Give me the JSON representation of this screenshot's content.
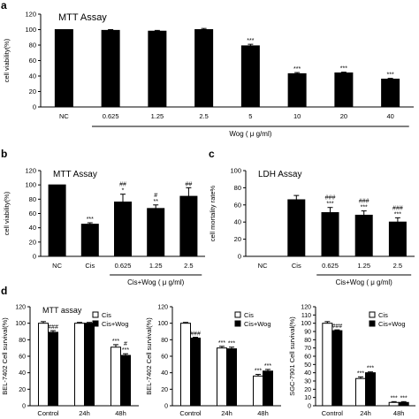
{
  "colors": {
    "bar_black": "#000000",
    "bar_white": "#ffffff",
    "axis": "#000000"
  },
  "chart_data": [
    {
      "panel": "a",
      "type": "bar",
      "title": "MTT Assay",
      "ylabel": "cell viability(%)",
      "xlabel": "Wog ( μ g/ml)",
      "ylim": [
        0,
        120
      ],
      "yticks": [
        "0",
        "20",
        "40",
        "60",
        "80",
        "100",
        "120"
      ],
      "categories": [
        "NC",
        "0.625",
        "1.25",
        "2.5",
        "5",
        "10",
        "20",
        "40"
      ],
      "values": [
        100,
        99,
        98,
        100,
        79,
        43,
        44,
        36
      ],
      "errors": [
        0,
        1,
        1,
        1.5,
        2,
        1.5,
        1,
        1
      ],
      "annotations": [
        "",
        "",
        "",
        "",
        "***",
        "***",
        "***",
        "***"
      ],
      "group_bracket": {
        "from": 1,
        "to": 7
      }
    },
    {
      "panel": "b",
      "type": "bar",
      "title": "MTT Assay",
      "ylabel": "cell viability(%)",
      "xlabel": "Cis+Wog ( μ g/ml)",
      "ylim": [
        0,
        120
      ],
      "yticks": [
        "0",
        "20",
        "40",
        "60",
        "80",
        "100",
        "120"
      ],
      "categories": [
        "NC",
        "Cis",
        "0.625",
        "1.25",
        "2.5"
      ],
      "values": [
        100,
        45,
        76,
        67,
        84
      ],
      "errors": [
        0,
        2,
        11,
        5,
        12
      ],
      "annotations": [
        "",
        "***",
        "##\n*",
        "#\n**",
        "##"
      ],
      "group_bracket": {
        "from": 2,
        "to": 4
      }
    },
    {
      "panel": "c",
      "type": "bar",
      "title": "LDH Assay",
      "ylabel": "cell mortality rate%",
      "xlabel": "Cis+Wog ( μ g/ml)",
      "ylim": [
        0,
        100
      ],
      "yticks": [
        "0",
        "20",
        "40",
        "60",
        "80",
        "100"
      ],
      "categories": [
        "NC",
        "Cis",
        "0.625",
        "1.25",
        "2.5"
      ],
      "values": [
        0,
        66,
        51,
        48,
        40
      ],
      "errors": [
        0,
        5,
        6,
        5,
        5
      ],
      "annotations": [
        "",
        "",
        "###\n***",
        "###\n***",
        "###\n***"
      ],
      "group_bracket": {
        "from": 2,
        "to": 4
      }
    },
    {
      "panel": "d1",
      "type": "bar",
      "title": "MTT assay",
      "ylabel": "BEL-7402 Cell survival(%)",
      "ylim": [
        0,
        120
      ],
      "yticks": [
        "0",
        "20",
        "40",
        "60",
        "80",
        "100",
        "120"
      ],
      "categories": [
        "Control",
        "24h",
        "48h"
      ],
      "series": [
        {
          "name": "Cis",
          "values": [
            100,
            100,
            71
          ],
          "errors": [
            2,
            1,
            3
          ],
          "annotations": [
            "",
            "",
            "***"
          ]
        },
        {
          "name": "Cis+Wog",
          "values": [
            89,
            100,
            61
          ],
          "errors": [
            2,
            1,
            2
          ],
          "annotations": [
            "###",
            "",
            "#\n***"
          ]
        }
      ],
      "legend": "top-right"
    },
    {
      "panel": "d2",
      "type": "bar",
      "ylabel": "BEL-7402 Cell survival(%)",
      "ylim": [
        0,
        120
      ],
      "yticks": [
        "0",
        "20",
        "40",
        "60",
        "80",
        "100",
        "120"
      ],
      "categories": [
        "Control",
        "24h",
        "48h"
      ],
      "series": [
        {
          "name": "Cis",
          "values": [
            100,
            70,
            36
          ],
          "errors": [
            1,
            2,
            2
          ],
          "annotations": [
            "",
            "***",
            "***"
          ]
        },
        {
          "name": "Cis+Wog",
          "values": [
            82,
            69,
            42
          ],
          "errors": [
            1,
            2,
            2
          ],
          "annotations": [
            "###",
            "***",
            "***"
          ]
        }
      ],
      "legend": "top-right"
    },
    {
      "panel": "d3",
      "type": "bar",
      "ylabel": "SGC-7901 Cell survival(%)",
      "ylim": [
        0,
        120
      ],
      "yticks": [
        "0",
        "10",
        "20",
        "30",
        "40",
        "50",
        "60",
        "70",
        "80",
        "90",
        "100",
        "110",
        "120"
      ],
      "categories": [
        "Control",
        "24h",
        "48h"
      ],
      "series": [
        {
          "name": "Cis",
          "values": [
            100,
            33,
            4
          ],
          "errors": [
            2,
            2,
            1
          ],
          "annotations": [
            "",
            "***",
            "***"
          ]
        },
        {
          "name": "Cis+Wog",
          "values": [
            91,
            40,
            4
          ],
          "errors": [
            1,
            1,
            1
          ],
          "annotations": [
            "###",
            "***",
            "***"
          ]
        }
      ],
      "legend": "top-right"
    }
  ],
  "panel_labels": [
    "a",
    "b",
    "c",
    "d"
  ]
}
